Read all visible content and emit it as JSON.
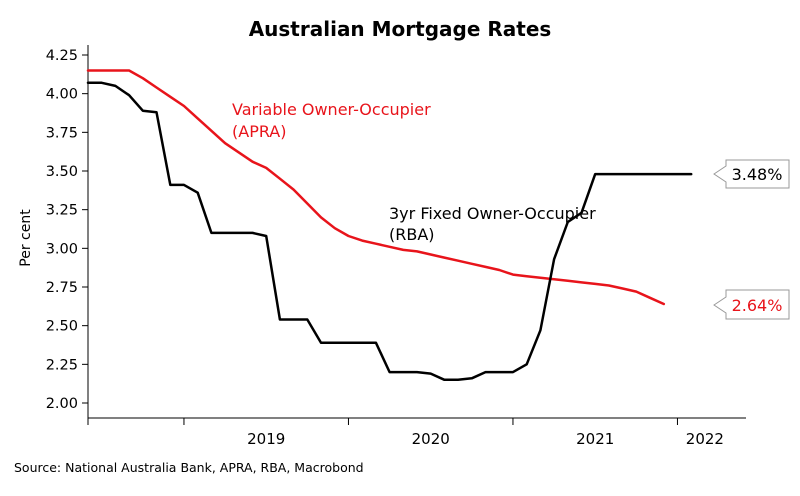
{
  "chart_data": {
    "type": "line",
    "title": "Australian Mortgage Rates",
    "ylabel": "Per cent",
    "xlabel": "",
    "ylim": [
      2.0,
      4.25
    ],
    "yticks": [
      "4.25",
      "4.00",
      "3.75",
      "3.50",
      "3.25",
      "3.00",
      "2.75",
      "2.50",
      "2.25",
      "2.00"
    ],
    "xlim": [
      "2018-06",
      "2022-06"
    ],
    "xtick_labels": [
      "2019",
      "2020",
      "2021",
      "2022"
    ],
    "grid": false,
    "series": [
      {
        "name": "Variable Owner-Occupier (APRA)",
        "color": "#e8141b",
        "x": [
          "2018-06",
          "2018-07",
          "2018-08",
          "2018-09",
          "2018-10",
          "2018-11",
          "2018-12",
          "2019-01",
          "2019-02",
          "2019-03",
          "2019-04",
          "2019-05",
          "2019-06",
          "2019-07",
          "2019-08",
          "2019-09",
          "2019-10",
          "2019-11",
          "2019-12",
          "2020-01",
          "2020-02",
          "2020-03",
          "2020-04",
          "2020-05",
          "2020-06",
          "2020-07",
          "2020-08",
          "2020-09",
          "2020-10",
          "2020-11",
          "2020-12",
          "2021-01",
          "2021-02",
          "2021-03",
          "2021-04",
          "2021-05",
          "2021-06",
          "2021-07",
          "2021-08",
          "2021-09",
          "2021-10",
          "2021-11",
          "2021-12"
        ],
        "values": [
          4.15,
          4.15,
          4.15,
          4.15,
          4.1,
          4.04,
          3.98,
          3.92,
          3.84,
          3.76,
          3.68,
          3.62,
          3.56,
          3.52,
          3.45,
          3.38,
          3.29,
          3.2,
          3.13,
          3.08,
          3.05,
          3.03,
          3.01,
          2.99,
          2.98,
          2.96,
          2.94,
          2.92,
          2.9,
          2.88,
          2.86,
          2.83,
          2.82,
          2.81,
          2.8,
          2.79,
          2.78,
          2.77,
          2.76,
          2.74,
          2.72,
          2.68,
          2.64
        ],
        "label_line1": "Variable Owner-Occupier",
        "label_line2": "(APRA)"
      },
      {
        "name": "3yr Fixed Owner-Occupier (RBA)",
        "color": "#000000",
        "x": [
          "2018-06",
          "2018-07",
          "2018-08",
          "2018-09",
          "2018-10",
          "2018-11",
          "2018-12",
          "2019-01",
          "2019-02",
          "2019-03",
          "2019-04",
          "2019-05",
          "2019-06",
          "2019-07",
          "2019-08",
          "2019-09",
          "2019-10",
          "2019-11",
          "2019-12",
          "2020-01",
          "2020-02",
          "2020-03",
          "2020-04",
          "2020-05",
          "2020-06",
          "2020-07",
          "2020-08",
          "2020-09",
          "2020-10",
          "2020-11",
          "2020-12",
          "2021-01",
          "2021-02",
          "2021-03",
          "2021-04",
          "2021-05",
          "2021-06",
          "2021-07",
          "2021-08",
          "2021-09",
          "2021-10",
          "2021-11",
          "2021-12",
          "2022-01",
          "2022-02"
        ],
        "values": [
          4.07,
          4.07,
          4.05,
          3.99,
          3.89,
          3.88,
          3.41,
          3.41,
          3.36,
          3.1,
          3.1,
          3.1,
          3.1,
          3.08,
          2.54,
          2.54,
          2.54,
          2.39,
          2.39,
          2.39,
          2.39,
          2.39,
          2.2,
          2.2,
          2.2,
          2.19,
          2.15,
          2.15,
          2.16,
          2.2,
          2.2,
          2.2,
          2.25,
          2.47,
          2.93,
          3.17,
          3.23,
          3.48,
          3.48,
          3.48,
          3.48,
          3.48,
          3.48,
          3.48,
          3.48
        ],
        "label_line1": "3yr Fixed Owner-Occupier",
        "label_line2": "(RBA)"
      }
    ],
    "end_labels": [
      "3.48%",
      "2.64%"
    ]
  },
  "source": "Source: National Australia Bank, APRA, RBA, Macrobond"
}
